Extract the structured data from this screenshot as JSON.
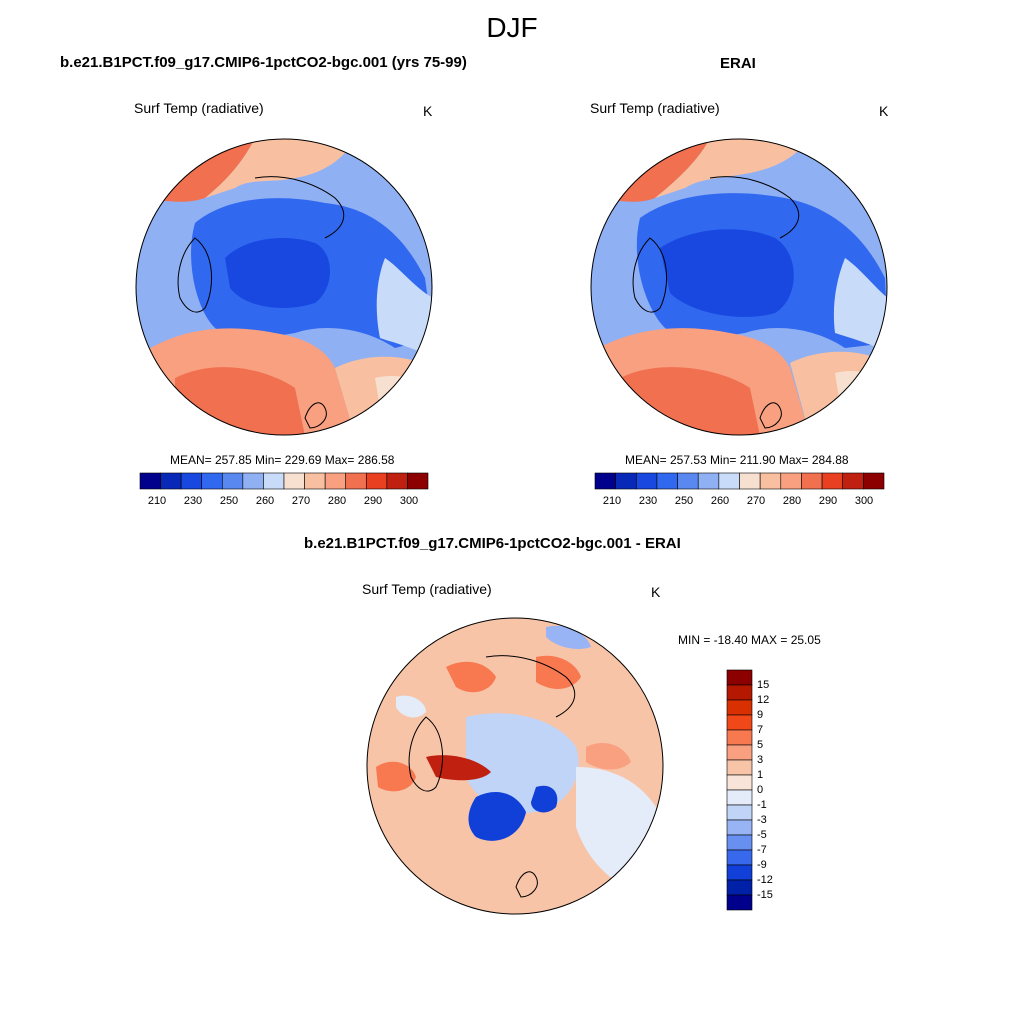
{
  "season": "DJF",
  "panels": {
    "model": {
      "title": "b.e21.B1PCT.f09_g17.CMIP6-1pctCO2-bgc.001 (yrs 75-99)",
      "variable": "Surf Temp (radiative)",
      "units": "K",
      "stats": "MEAN= 257.85  Min= 229.69  Max= 286.58"
    },
    "obs": {
      "title": "ERAI",
      "variable": "Surf Temp (radiative)",
      "units": "K",
      "stats": "MEAN= 257.53  Min= 211.90  Max= 284.88"
    },
    "diff": {
      "title": "b.e21.B1PCT.f09_g17.CMIP6-1pctCO2-bgc.001 - ERAI",
      "variable": "Surf Temp (radiative)",
      "units": "K",
      "stats": "MIN = -18.40 MAX =  25.05"
    }
  },
  "abs_colorbar": {
    "labels": [
      "210",
      "230",
      "250",
      "260",
      "270",
      "280",
      "290",
      "300"
    ],
    "colors": [
      "#00008c",
      "#0828b8",
      "#1848e0",
      "#3068f0",
      "#5888f0",
      "#90b0f4",
      "#c8dcfa",
      "#f8e0d0",
      "#f8c0a0",
      "#f8a080",
      "#f07050",
      "#e84020",
      "#c02010",
      "#8c0000"
    ]
  },
  "diff_colorbar": {
    "labels": [
      "15",
      "12",
      "9",
      "7",
      "5",
      "3",
      "1",
      "0",
      "-1",
      "-3",
      "-5",
      "-7",
      "-9",
      "-12",
      "-15"
    ],
    "colors": [
      "#8c0000",
      "#b41800",
      "#d83000",
      "#f04818",
      "#f87850",
      "#f8a080",
      "#f8c4a8",
      "#f8e4d8",
      "#e4ecfa",
      "#c0d4f8",
      "#98b4f4",
      "#6890f0",
      "#3868ec",
      "#1040d8",
      "#0020a8",
      "#00008c"
    ]
  }
}
